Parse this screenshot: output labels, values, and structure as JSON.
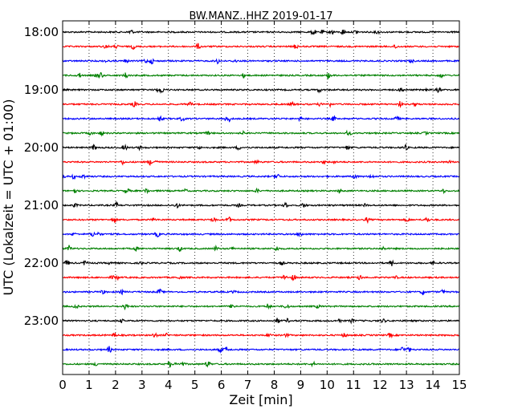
{
  "chart_data": {
    "type": "line",
    "title": "BW.MANZ..HHZ 2019-01-17",
    "xlabel": "Zeit  [min]",
    "ylabel": "UTC (Lokalzeit = UTC + 01:00)",
    "xlim": [
      0,
      15
    ],
    "x_ticks": [
      "0",
      "1",
      "2",
      "3",
      "4",
      "5",
      "6",
      "7",
      "8",
      "9",
      "10",
      "11",
      "12",
      "13",
      "14",
      "15"
    ],
    "y_ticks": [
      "18:00",
      "19:00",
      "20:00",
      "21:00",
      "22:00",
      "23:00"
    ],
    "vertical_grid": true,
    "grid_style": "dotted",
    "trace_interval_minutes": 15,
    "trace_colors": [
      "#000000",
      "#ff0000",
      "#0000ff",
      "#008000"
    ],
    "traces": [
      {
        "start": "18:00",
        "color": "#000000"
      },
      {
        "start": "18:15",
        "color": "#ff0000"
      },
      {
        "start": "18:30",
        "color": "#0000ff"
      },
      {
        "start": "18:45",
        "color": "#008000"
      },
      {
        "start": "19:00",
        "color": "#000000"
      },
      {
        "start": "19:15",
        "color": "#ff0000"
      },
      {
        "start": "19:30",
        "color": "#0000ff"
      },
      {
        "start": "19:45",
        "color": "#008000"
      },
      {
        "start": "20:00",
        "color": "#000000"
      },
      {
        "start": "20:15",
        "color": "#ff0000"
      },
      {
        "start": "20:30",
        "color": "#0000ff"
      },
      {
        "start": "20:45",
        "color": "#008000"
      },
      {
        "start": "21:00",
        "color": "#000000"
      },
      {
        "start": "21:15",
        "color": "#ff0000"
      },
      {
        "start": "21:30",
        "color": "#0000ff"
      },
      {
        "start": "21:45",
        "color": "#008000"
      },
      {
        "start": "22:00",
        "color": "#000000"
      },
      {
        "start": "22:15",
        "color": "#ff0000"
      },
      {
        "start": "22:30",
        "color": "#0000ff"
      },
      {
        "start": "22:45",
        "color": "#008000"
      },
      {
        "start": "23:00",
        "color": "#000000"
      },
      {
        "start": "23:15",
        "color": "#ff0000"
      },
      {
        "start": "23:30",
        "color": "#0000ff"
      },
      {
        "start": "23:45",
        "color": "#008000"
      }
    ]
  }
}
